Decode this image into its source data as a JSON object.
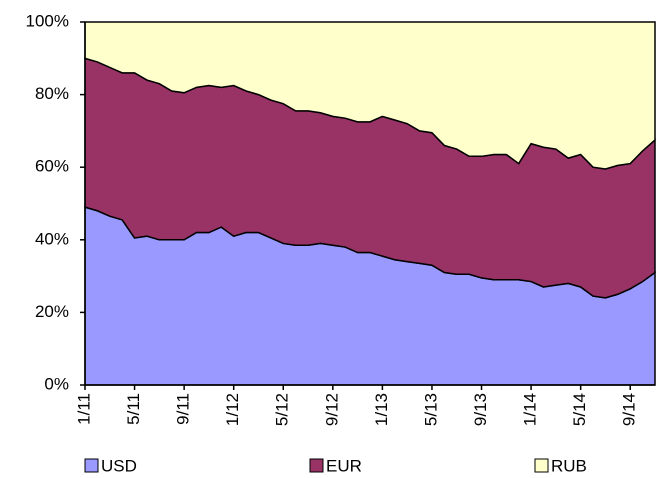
{
  "chart_data": {
    "type": "stacked-area",
    "categories": [
      "1/11",
      null,
      null,
      null,
      "5/11",
      null,
      null,
      null,
      "9/11",
      null,
      null,
      null,
      "1/12",
      null,
      null,
      null,
      "5/12",
      null,
      null,
      null,
      "9/12",
      null,
      null,
      null,
      "1/13",
      null,
      null,
      null,
      "5/13",
      null,
      null,
      null,
      "9/13",
      null,
      null,
      null,
      "1/14",
      null,
      null,
      null,
      "5/14",
      null,
      null,
      null,
      "9/14",
      null,
      null
    ],
    "series": [
      {
        "name": "USD",
        "color": "#9999ff",
        "values": [
          49,
          48,
          46.5,
          45.5,
          40.5,
          41,
          40,
          40,
          40,
          42,
          42,
          43.5,
          41,
          42,
          42,
          40.5,
          39,
          38.5,
          38.5,
          39,
          38.5,
          38,
          36.5,
          36.5,
          35.5,
          34.5,
          34,
          33.5,
          33,
          31,
          30.5,
          30.5,
          29.5,
          29,
          29,
          29,
          28.5,
          27,
          27.5,
          28,
          27,
          24.5,
          24,
          25,
          26.5,
          28.5,
          31
        ]
      },
      {
        "name": "EUR",
        "color": "#993366",
        "values": [
          41,
          41,
          41,
          40.5,
          45.5,
          43,
          43,
          41,
          40.5,
          40,
          40.5,
          38.5,
          41.5,
          39,
          38,
          38,
          38.5,
          37,
          37,
          36,
          35.5,
          35.5,
          36,
          36,
          38.5,
          38.5,
          38,
          36.5,
          36.5,
          35,
          34.5,
          32.5,
          33.5,
          34.5,
          34.5,
          32,
          38,
          38.5,
          37.5,
          34.5,
          36.5,
          35.5,
          35.5,
          35.5,
          34.5,
          36,
          36.5
        ]
      },
      {
        "name": "RUB",
        "color": "#ffffcc",
        "values": [
          10,
          11,
          12.5,
          14,
          14,
          16,
          17,
          19,
          19.5,
          18,
          17.5,
          18,
          17.5,
          19,
          20,
          21.5,
          22.5,
          24.5,
          24.5,
          25,
          26,
          26.5,
          27.5,
          27.5,
          26,
          27,
          28,
          30,
          30.5,
          34,
          35,
          37,
          37,
          36.5,
          36.5,
          39,
          33.5,
          34.5,
          35,
          37.5,
          36.5,
          40,
          40.5,
          39.5,
          39,
          35.5,
          32.5
        ]
      }
    ],
    "ylim": [
      0,
      100
    ],
    "yticks": [
      {
        "value": 0,
        "label": "0%"
      },
      {
        "value": 20,
        "label": "20%"
      },
      {
        "value": 40,
        "label": "40%"
      },
      {
        "value": 60,
        "label": "60%"
      },
      {
        "value": 80,
        "label": "80%"
      },
      {
        "value": 100,
        "label": "100%"
      }
    ],
    "grid": false
  }
}
